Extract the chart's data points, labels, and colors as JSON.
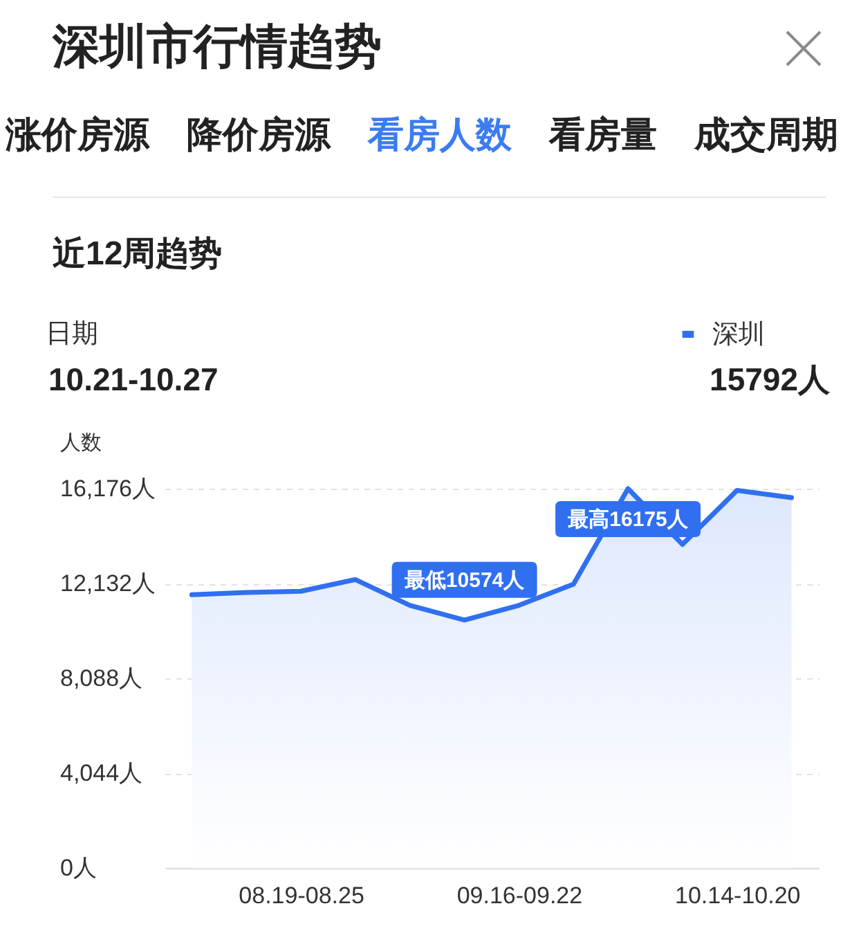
{
  "chart_data": {
    "type": "area",
    "title": "深圳市行情趋势",
    "subtitle": "近12周趋势",
    "ylabel": "人数",
    "annotations": [
      "涨价房源",
      "降价房源",
      "看房人数",
      "看房量",
      "成交周期",
      "日期",
      "10.21-10.27",
      "15792人"
    ],
    "categories": [
      null,
      null,
      "08.19-08.25",
      null,
      null,
      null,
      "09.16-09.22",
      null,
      null,
      null,
      "10.14-10.20",
      null
    ],
    "series": [
      {
        "name": "深圳",
        "color": "#3070f0",
        "values": [
          11650,
          11750,
          11800,
          12300,
          11200,
          10574,
          11200,
          12100,
          16175,
          13800,
          16100,
          15792
        ],
        "value_labels": [
          null,
          null,
          null,
          null,
          null,
          "最低10574人",
          null,
          null,
          "最高16175人",
          null,
          null,
          null
        ]
      }
    ],
    "ylim": [
      0,
      16176
    ],
    "yticks": [
      {
        "value": 0,
        "label": "0人"
      },
      {
        "value": 4044,
        "label": "4,044人"
      },
      {
        "value": 8088,
        "label": "8,088人"
      },
      {
        "value": 12132,
        "label": "12,132人"
      },
      {
        "value": 16176,
        "label": "16,176人"
      }
    ],
    "grid": "y",
    "legend": "top right"
  }
}
